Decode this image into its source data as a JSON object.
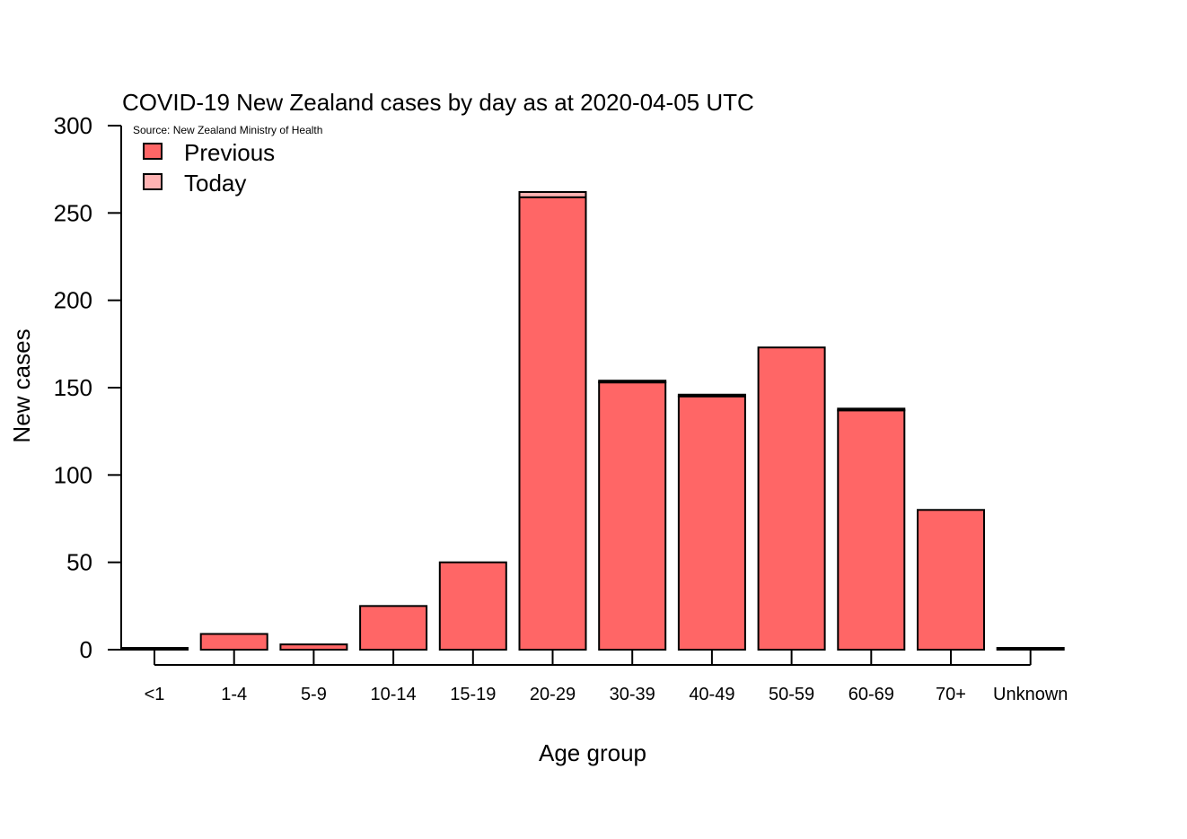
{
  "chart_data": {
    "type": "bar",
    "stacked": true,
    "title": "COVID-19 New Zealand cases by day as at 2020-04-05 UTC",
    "subtitle": "Source: New Zealand Ministry of Health",
    "xlabel": "Age group",
    "ylabel": "New cases",
    "ylim": [
      0,
      300
    ],
    "yticks": [
      0,
      50,
      100,
      150,
      200,
      250,
      300
    ],
    "categories": [
      "<1",
      "1-4",
      "5-9",
      "10-14",
      "15-19",
      "20-29",
      "30-39",
      "40-49",
      "50-59",
      "60-69",
      "70+",
      "Unknown"
    ],
    "series": [
      {
        "name": "Previous",
        "color": "#ff6666",
        "values": [
          1,
          9,
          3,
          25,
          50,
          259,
          153,
          145,
          173,
          137,
          80,
          1
        ]
      },
      {
        "name": "Today",
        "color": "#ffb3b3",
        "values": [
          0,
          0,
          0,
          0,
          0,
          3,
          1,
          1,
          0,
          1,
          0,
          0
        ]
      }
    ],
    "legend_position": "top-left",
    "grid": false
  }
}
